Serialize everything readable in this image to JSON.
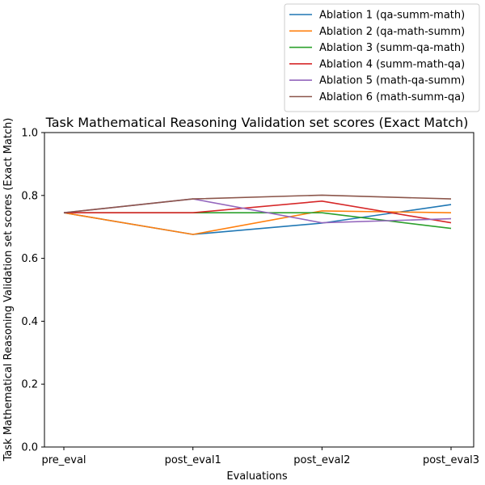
{
  "chart_data": {
    "type": "line",
    "title": "Task Mathematical Reasoning Validation set scores (Exact Match)",
    "xlabel": "Evaluations",
    "ylabel": "Task Mathematical Reasoning Validation set scores (Exact Match)",
    "categories": [
      "pre_eval",
      "post_eval1",
      "post_eval2",
      "post_eval3"
    ],
    "ylim": [
      0,
      1.0
    ],
    "yticks": [
      "0.0",
      "0.2",
      "0.4",
      "0.6",
      "0.8",
      "1.0"
    ],
    "grid": false,
    "legend_position": "top-right",
    "series": [
      {
        "name": "Ablation 1 (qa-summ-math)",
        "color": "#1f77b4",
        "values": [
          0.745,
          0.676,
          0.712,
          0.771
        ]
      },
      {
        "name": "Ablation 2 (qa-math-summ)",
        "color": "#ff7f0e",
        "values": [
          0.745,
          0.676,
          0.751,
          0.745
        ]
      },
      {
        "name": "Ablation 3 (summ-qa-math)",
        "color": "#2ca02c",
        "values": [
          0.745,
          0.745,
          0.745,
          0.695
        ]
      },
      {
        "name": "Ablation 4 (summ-math-qa)",
        "color": "#d62728",
        "values": [
          0.745,
          0.745,
          0.782,
          0.713
        ]
      },
      {
        "name": "Ablation 5 (math-qa-summ)",
        "color": "#9467bd",
        "values": [
          0.745,
          0.789,
          0.713,
          0.726
        ]
      },
      {
        "name": "Ablation 6 (math-summ-qa)",
        "color": "#8c564b",
        "values": [
          0.745,
          0.789,
          0.801,
          0.789
        ]
      }
    ]
  }
}
